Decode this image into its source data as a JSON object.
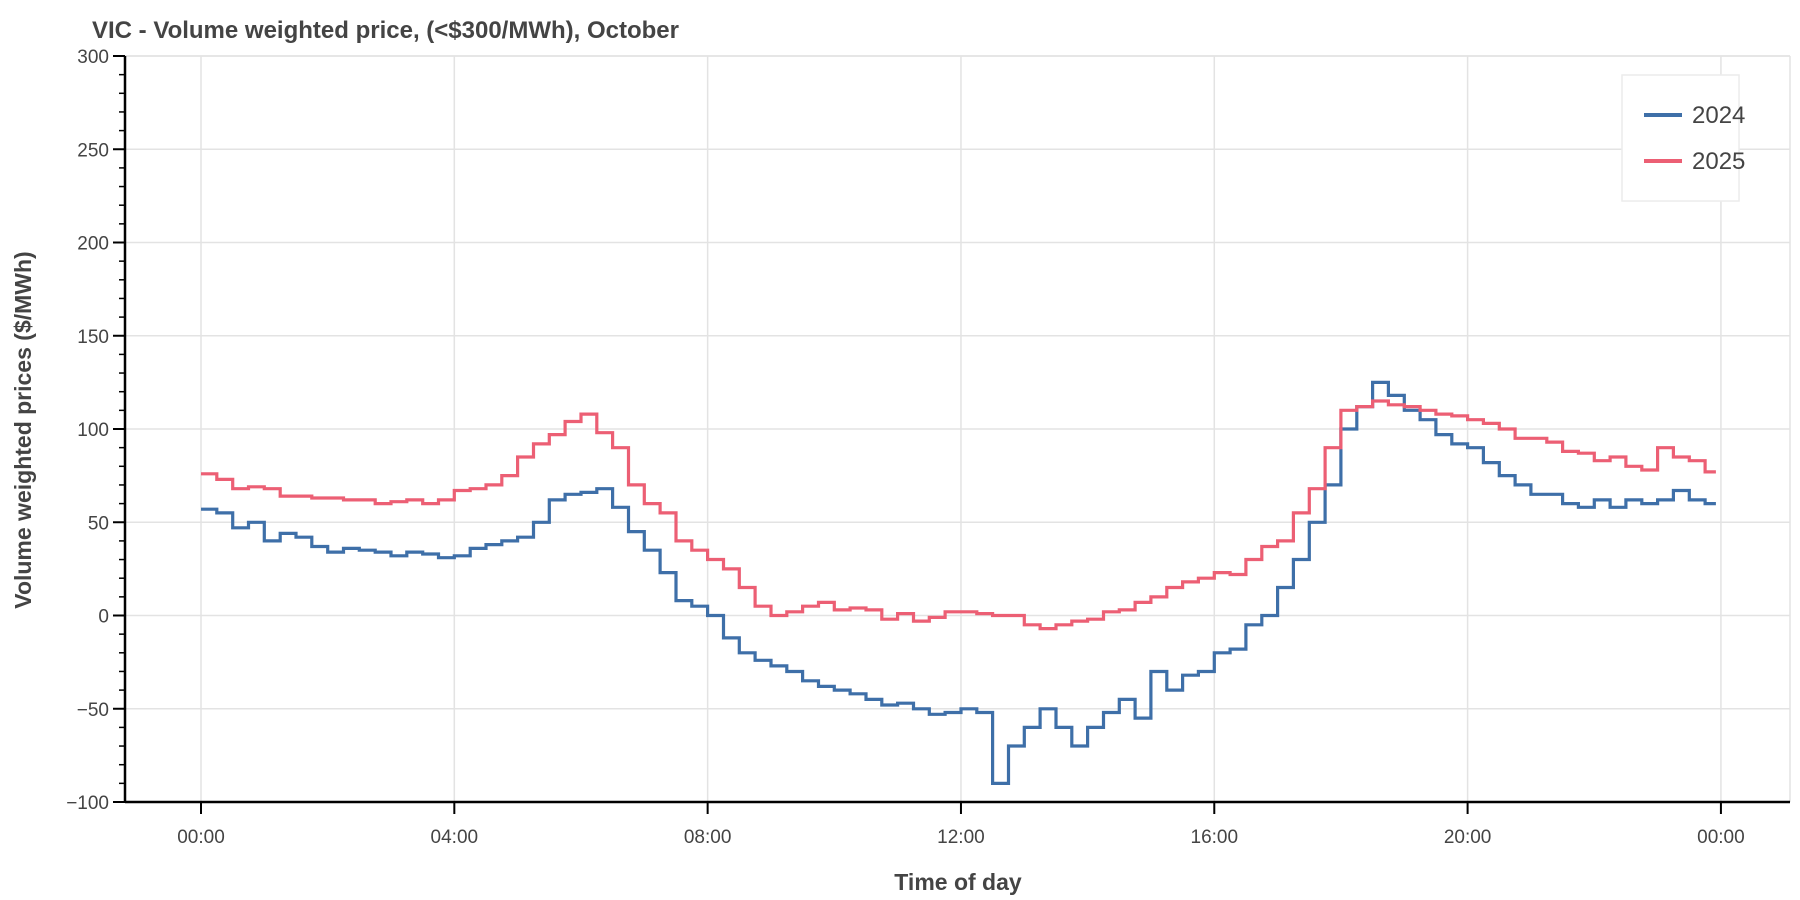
{
  "chart_data": {
    "type": "line",
    "step": true,
    "title": "VIC - Volume weighted price, (<$300/MWh), October",
    "xlabel": "Time of day",
    "ylabel": "Volume weighted prices ($/MWh)",
    "ylim": [
      -100,
      300
    ],
    "xlim_hours": [
      -1,
      25
    ],
    "grid": true,
    "legend_position": "top-right",
    "x_ticks": [
      "00:00",
      "04:00",
      "08:00",
      "12:00",
      "16:00",
      "20:00",
      "00:00"
    ],
    "y_ticks": [
      "300",
      "250",
      "200",
      "150",
      "100",
      "50",
      "0",
      "−50",
      "−100"
    ],
    "x_interval_minutes": 15,
    "series": [
      {
        "name": "2024",
        "color": "#3e6fa8",
        "values": [
          57,
          55,
          47,
          50,
          40,
          44,
          42,
          37,
          34,
          36,
          35,
          34,
          32,
          34,
          33,
          31,
          32,
          36,
          38,
          40,
          42,
          50,
          62,
          65,
          66,
          68,
          58,
          45,
          35,
          23,
          8,
          5,
          0,
          -12,
          -20,
          -24,
          -27,
          -30,
          -35,
          -38,
          -40,
          -42,
          -45,
          -48,
          -47,
          -50,
          -53,
          -52,
          -50,
          -52,
          -90,
          -70,
          -60,
          -50,
          -60,
          -70,
          -60,
          -52,
          -45,
          -55,
          -30,
          -40,
          -32,
          -30,
          -20,
          -18,
          -5,
          0,
          15,
          30,
          50,
          70,
          100,
          112,
          125,
          118,
          110,
          105,
          97,
          92,
          90,
          82,
          75,
          70,
          65,
          65,
          60,
          58,
          62,
          58,
          62,
          60,
          62,
          67,
          62,
          60
        ]
      },
      {
        "name": "2025",
        "color": "#ec5f74",
        "values": [
          76,
          73,
          68,
          69,
          68,
          64,
          64,
          63,
          63,
          62,
          62,
          60,
          61,
          62,
          60,
          62,
          67,
          68,
          70,
          75,
          85,
          92,
          97,
          104,
          108,
          98,
          90,
          70,
          60,
          55,
          40,
          35,
          30,
          25,
          15,
          5,
          0,
          2,
          5,
          7,
          3,
          4,
          3,
          -2,
          1,
          -3,
          -1,
          2,
          2,
          1,
          0,
          0,
          -5,
          -7,
          -5,
          -3,
          -2,
          2,
          3,
          7,
          10,
          15,
          18,
          20,
          23,
          22,
          30,
          37,
          40,
          55,
          68,
          90,
          110,
          112,
          115,
          113,
          112,
          110,
          108,
          107,
          105,
          103,
          100,
          95,
          95,
          93,
          88,
          87,
          83,
          85,
          80,
          78,
          90,
          85,
          83,
          77
        ]
      }
    ]
  }
}
